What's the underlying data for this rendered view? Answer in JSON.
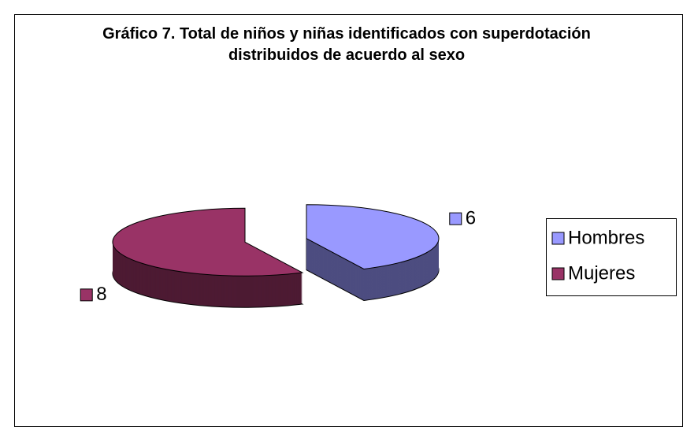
{
  "chart_data": {
    "type": "pie",
    "title": "Gráfico 7. Total de niños y niñas identificados con superdotación distribuidos de acuerdo al sexo",
    "categories": [
      "Hombres",
      "Mujeres"
    ],
    "values": [
      6,
      8
    ],
    "colors": [
      "#9999ff",
      "#993366"
    ],
    "legend": "right"
  }
}
